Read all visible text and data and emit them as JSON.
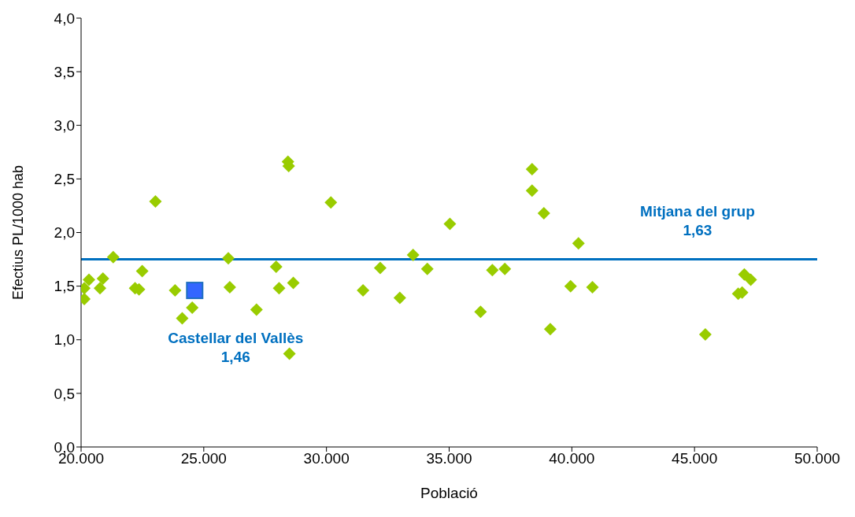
{
  "chart_data": {
    "type": "scatter",
    "xlabel": "Població",
    "ylabel": "Efectius PL/1000 hab",
    "xlim": [
      20000,
      50000
    ],
    "xticks": [
      {
        "value": 20000,
        "label": "20.000"
      },
      {
        "value": 25000,
        "label": "25.000"
      },
      {
        "value": 30000,
        "label": "30.000"
      },
      {
        "value": 35000,
        "label": "35.000"
      },
      {
        "value": 40000,
        "label": "40.000"
      },
      {
        "value": 45000,
        "label": "45.000"
      },
      {
        "value": 50000,
        "label": "50.000"
      }
    ],
    "ylim": [
      0,
      4
    ],
    "yticks": [
      {
        "value": 0,
        "label": "0,0"
      },
      {
        "value": 0.5,
        "label": "0,5"
      },
      {
        "value": 1,
        "label": "1,0"
      },
      {
        "value": 1.5,
        "label": "1,5"
      },
      {
        "value": 2,
        "label": "2,0"
      },
      {
        "value": 2.5,
        "label": "2,5"
      },
      {
        "value": 3,
        "label": "3,0"
      },
      {
        "value": 3.5,
        "label": "3,5"
      },
      {
        "value": 4,
        "label": "4,0"
      }
    ],
    "grid": false,
    "legend": false,
    "series": [
      {
        "color": "#99cc00",
        "marker": "diamond",
        "x": [
          20130,
          20130,
          20320,
          20770,
          20890,
          21310,
          22200,
          22360,
          22490,
          23030,
          23830,
          24120,
          24530,
          26000,
          26060,
          27150,
          27950,
          28070,
          28430,
          28460,
          28490,
          28650,
          30180,
          31490,
          32190,
          32990,
          33530,
          34110,
          35030,
          36280,
          36760,
          37270,
          38380,
          38380,
          38860,
          39120,
          39950,
          40270,
          40840,
          45440,
          46780,
          46940,
          47030,
          47290
        ],
        "values": [
          1.48,
          1.38,
          1.56,
          1.48,
          1.57,
          1.77,
          1.48,
          1.47,
          1.64,
          2.29,
          1.46,
          1.2,
          1.3,
          1.76,
          1.49,
          1.28,
          1.68,
          1.48,
          2.66,
          2.62,
          0.87,
          1.53,
          2.28,
          1.46,
          1.67,
          1.39,
          1.79,
          1.66,
          2.08,
          1.26,
          1.65,
          1.66,
          2.59,
          2.39,
          2.18,
          1.1,
          1.5,
          1.9,
          1.49,
          1.05,
          1.43,
          1.44,
          1.61,
          1.56
        ]
      },
      {
        "color": "#3366ff",
        "marker": "square",
        "x": [
          24630
        ],
        "values": [
          1.46
        ]
      }
    ],
    "ref_lines": [
      {
        "axis": "y",
        "value": 1.75,
        "color": "#0070c0"
      }
    ],
    "annotations": [
      {
        "text": "Castellar del Vallès\n1,46",
        "x": 24630,
        "y": 1.46
      },
      {
        "text": "Mitjana del grup\n1,63",
        "x": 45120,
        "y": 1.75
      }
    ]
  }
}
